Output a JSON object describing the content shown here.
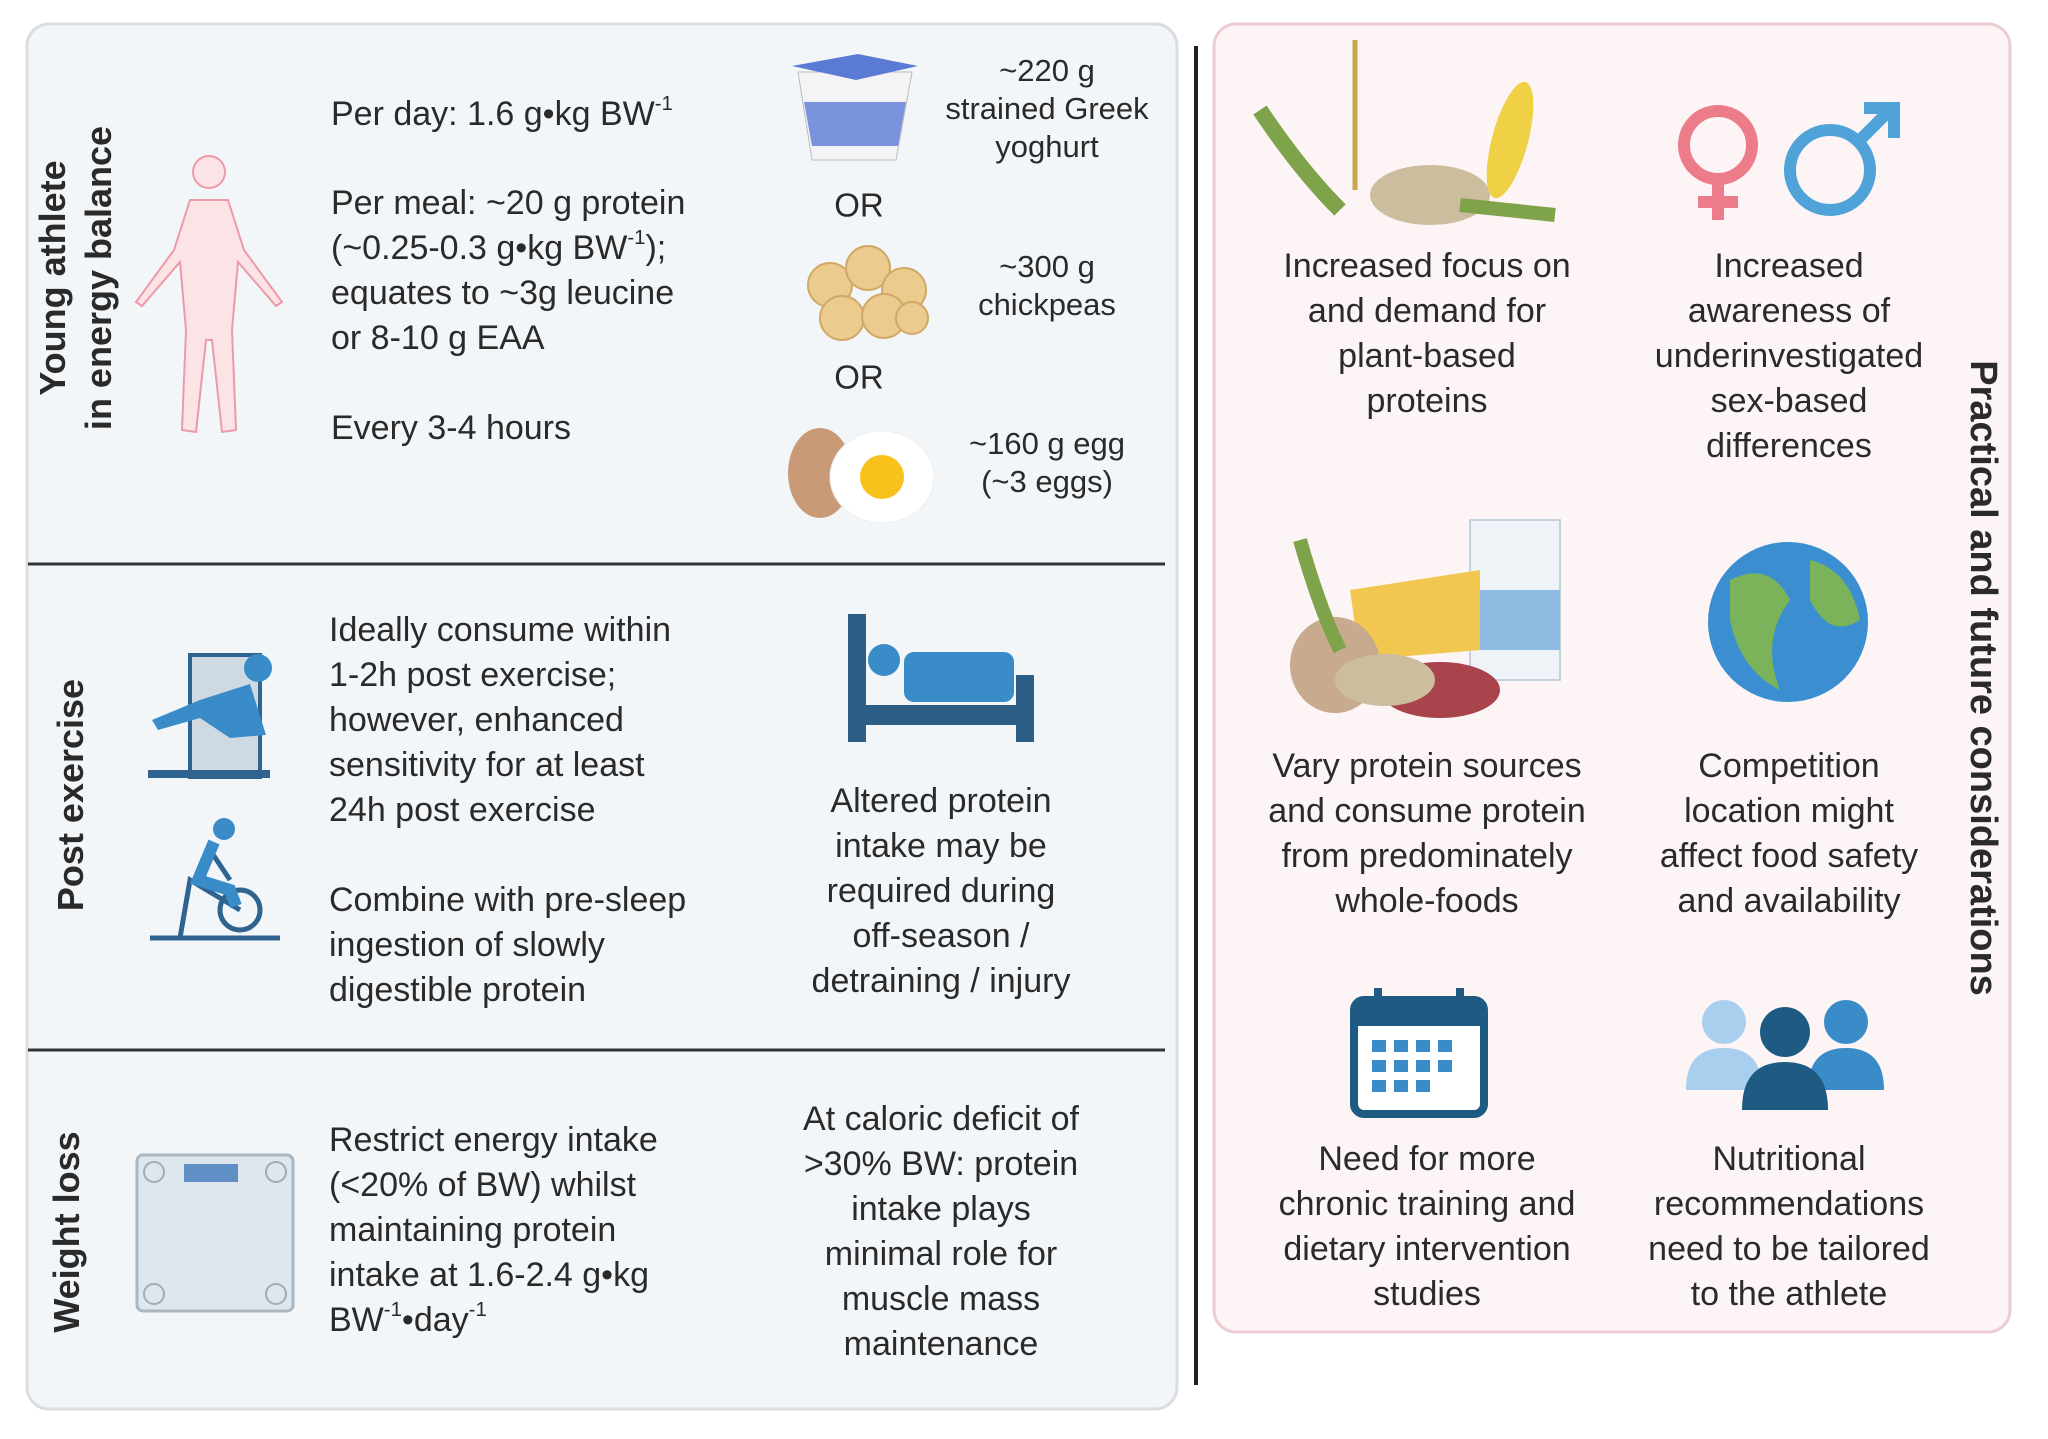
{
  "left_panel": {
    "energy_balance": {
      "label": [
        [
          "Young athlete"
        ],
        [
          "in energy balance"
        ]
      ],
      "per_day": [
        [
          "Per day:  1.6 g•kg BW",
          {
            "sup": "-1"
          }
        ]
      ],
      "per_meal": [
        [
          "Per meal: ~20 g protein"
        ],
        [
          "(~0.25-0.3 g•kg BW",
          {
            "sup": "-1"
          },
          ");"
        ],
        [
          "equates to ~3g leucine"
        ],
        [
          "or 8-10 g EAA"
        ]
      ],
      "frequency": [
        [
          "Every 3-4 hours"
        ]
      ],
      "foods": [
        [
          [
            "~220 g"
          ],
          [
            "strained Greek"
          ],
          [
            "yoghurt"
          ]
        ],
        [
          [
            "~300 g"
          ],
          [
            "chickpeas"
          ]
        ],
        [
          [
            "~160 g egg"
          ],
          [
            "(~3 eggs)"
          ]
        ]
      ],
      "separators": [
        "OR",
        "OR"
      ]
    },
    "post_exercise": {
      "label": [
        [
          "Post exercise"
        ]
      ],
      "timing": [
        [
          "Ideally consume within"
        ],
        [
          "1-2h post exercise;"
        ],
        [
          "however, enhanced"
        ],
        [
          "sensitivity for at least"
        ],
        [
          "24h post exercise"
        ]
      ],
      "pre_sleep": [
        [
          "Combine with pre-sleep"
        ],
        [
          "ingestion of slowly"
        ],
        [
          "digestible protein"
        ]
      ],
      "off_season": [
        [
          "Altered protein"
        ],
        [
          "intake may be"
        ],
        [
          "required during"
        ],
        [
          "off-season /"
        ],
        [
          "detraining / injury"
        ]
      ]
    },
    "weight_loss": {
      "label": [
        [
          "Weight loss"
        ]
      ],
      "restrict": [
        [
          "Restrict energy intake"
        ],
        [
          "(<20% of BW) whilst"
        ],
        [
          "maintaining protein"
        ],
        [
          "intake at 1.6-2.4 g•kg"
        ],
        [
          "BW",
          {
            "sup": "-1"
          },
          "•day",
          {
            "sup": "-1"
          }
        ]
      ],
      "deficit": [
        [
          "At caloric deficit of"
        ],
        [
          ">30% BW: protein"
        ],
        [
          "intake plays"
        ],
        [
          "minimal role for"
        ],
        [
          "muscle mass"
        ],
        [
          "maintenance"
        ]
      ]
    }
  },
  "right_panel": {
    "title": [
      [
        "Practical and future considerations"
      ]
    ],
    "items": [
      [
        [
          "Increased focus on"
        ],
        [
          "and demand for"
        ],
        [
          "plant-based"
        ],
        [
          "proteins"
        ]
      ],
      [
        [
          "Increased"
        ],
        [
          "awareness of"
        ],
        [
          "underinvestigated"
        ],
        [
          "sex-based"
        ],
        [
          "differences"
        ]
      ],
      [
        [
          "Vary protein sources"
        ],
        [
          "and consume protein"
        ],
        [
          "from predominately"
        ],
        [
          "whole-foods"
        ]
      ],
      [
        [
          "Competition"
        ],
        [
          "location might"
        ],
        [
          "affect food safety"
        ],
        [
          "and availability"
        ]
      ],
      [
        [
          "Need for more"
        ],
        [
          "chronic training and"
        ],
        [
          "dietary intervention"
        ],
        [
          "studies"
        ]
      ],
      [
        [
          "Nutritional"
        ],
        [
          "recommendations"
        ],
        [
          "need to be tailored"
        ],
        [
          "to the athlete"
        ]
      ]
    ]
  }
}
